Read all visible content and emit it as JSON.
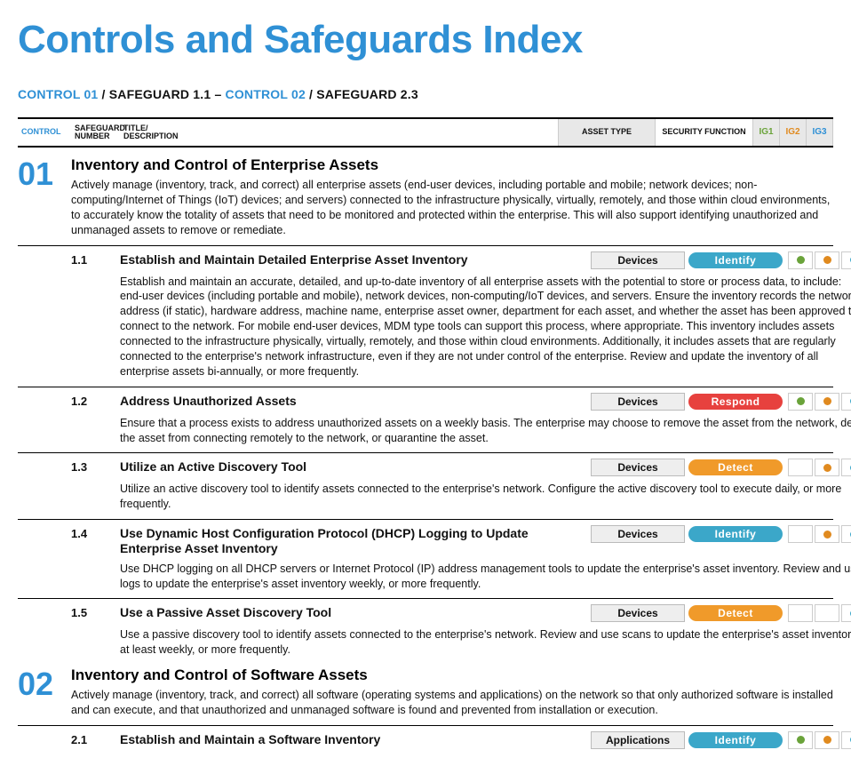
{
  "colors": {
    "brand_blue": "#2f90d5",
    "ig1": "#6aa33a",
    "ig2": "#e08a1f",
    "ig3": "#3ba7c9",
    "identify": "#3ba7c9",
    "respond": "#e7413e",
    "detect": "#f09a2a"
  },
  "page_title": "Controls and Safeguards Index",
  "range": {
    "left_control": "CONTROL 01",
    "left_sg": "SAFEGUARD 1.1",
    "dash": "–",
    "right_control": "CONTROL 02",
    "right_sg": "SAFEGUARD 2.3",
    "slash": " / "
  },
  "headers": {
    "control": "CONTROL",
    "sg_num_a": "SAFEGUARD",
    "sg_num_b": "NUMBER",
    "title_a": "TITLE/",
    "title_b": "DESCRIPTION",
    "asset_type": "ASSET TYPE",
    "security_function": "SECURITY FUNCTION",
    "ig1": "IG1",
    "ig2": "IG2",
    "ig3": "IG3"
  },
  "controls": [
    {
      "num": "01",
      "title": "Inventory and Control of Enterprise Assets",
      "desc": "Actively manage (inventory, track, and correct) all enterprise assets (end-user devices, including portable and mobile; network devices; non-computing/Internet of Things (IoT) devices; and servers) connected to the infrastructure physically, virtually, remotely, and those within cloud environments, to accurately know the totality of assets that need to be monitored and protected within the enterprise. This will also support identifying unauthorized and unmanaged assets to remove or remediate.",
      "safeguards": [
        {
          "num": "1.1",
          "title": "Establish and Maintain Detailed Enterprise Asset Inventory",
          "asset": "Devices",
          "func": "Identify",
          "func_color": "#3ba7c9",
          "ig": [
            true,
            true,
            true
          ],
          "desc": "Establish and maintain an accurate, detailed, and up-to-date inventory of all enterprise assets with the potential to store or process data, to include: end-user devices (including portable and mobile), network devices, non-computing/IoT devices, and servers. Ensure the inventory records the network address (if static), hardware address, machine name, enterprise asset owner, department for each asset, and whether the asset has been approved to connect to the network. For mobile end-user devices, MDM type tools can support this process, where appropriate. This inventory includes assets connected to the infrastructure physically, virtually, remotely, and those within cloud environments. Additionally, it includes assets that are regularly connected to the enterprise's network infrastructure, even if they are not under control of the enterprise. Review and update the inventory of all enterprise assets bi-annually, or more frequently."
        },
        {
          "num": "1.2",
          "title": "Address Unauthorized Assets",
          "asset": "Devices",
          "func": "Respond",
          "func_color": "#e7413e",
          "ig": [
            true,
            true,
            true
          ],
          "desc": "Ensure that a process exists to address unauthorized assets on a weekly basis. The enterprise may choose to remove the asset from the network, deny the asset from connecting remotely to the network, or quarantine the asset."
        },
        {
          "num": "1.3",
          "title": "Utilize an Active Discovery Tool",
          "asset": "Devices",
          "func": "Detect",
          "func_color": "#f09a2a",
          "ig": [
            false,
            true,
            true
          ],
          "desc": "Utilize an active discovery tool to identify assets connected to the enterprise's network. Configure the active discovery tool to execute daily, or more frequently."
        },
        {
          "num": "1.4",
          "title": "Use Dynamic Host Configuration Protocol (DHCP) Logging to Update Enterprise Asset Inventory",
          "asset": "Devices",
          "func": "Identify",
          "func_color": "#3ba7c9",
          "ig": [
            false,
            true,
            true
          ],
          "desc": "Use DHCP logging on all DHCP servers or Internet Protocol (IP) address management tools to update the enterprise's asset inventory. Review and use logs to update the enterprise's asset inventory weekly, or more frequently."
        },
        {
          "num": "1.5",
          "title": "Use a Passive Asset Discovery Tool",
          "asset": "Devices",
          "func": "Detect",
          "func_color": "#f09a2a",
          "ig": [
            false,
            false,
            true
          ],
          "desc": "Use a passive discovery tool to identify assets connected to the enterprise's network. Review and use scans to update the enterprise's asset inventory at least weekly, or more frequently."
        }
      ]
    },
    {
      "num": "02",
      "title": "Inventory and Control of Software Assets",
      "desc": "Actively manage (inventory, track, and correct) all software (operating systems and applications) on the network so that only authorized software is installed and can execute, and that unauthorized and unmanaged software is found and prevented from installation or execution.",
      "safeguards": [
        {
          "num": "2.1",
          "title": "Establish and Maintain a Software Inventory",
          "asset": "Applications",
          "func": "Identify",
          "func_color": "#3ba7c9",
          "ig": [
            true,
            true,
            true
          ],
          "desc": ""
        }
      ]
    }
  ]
}
